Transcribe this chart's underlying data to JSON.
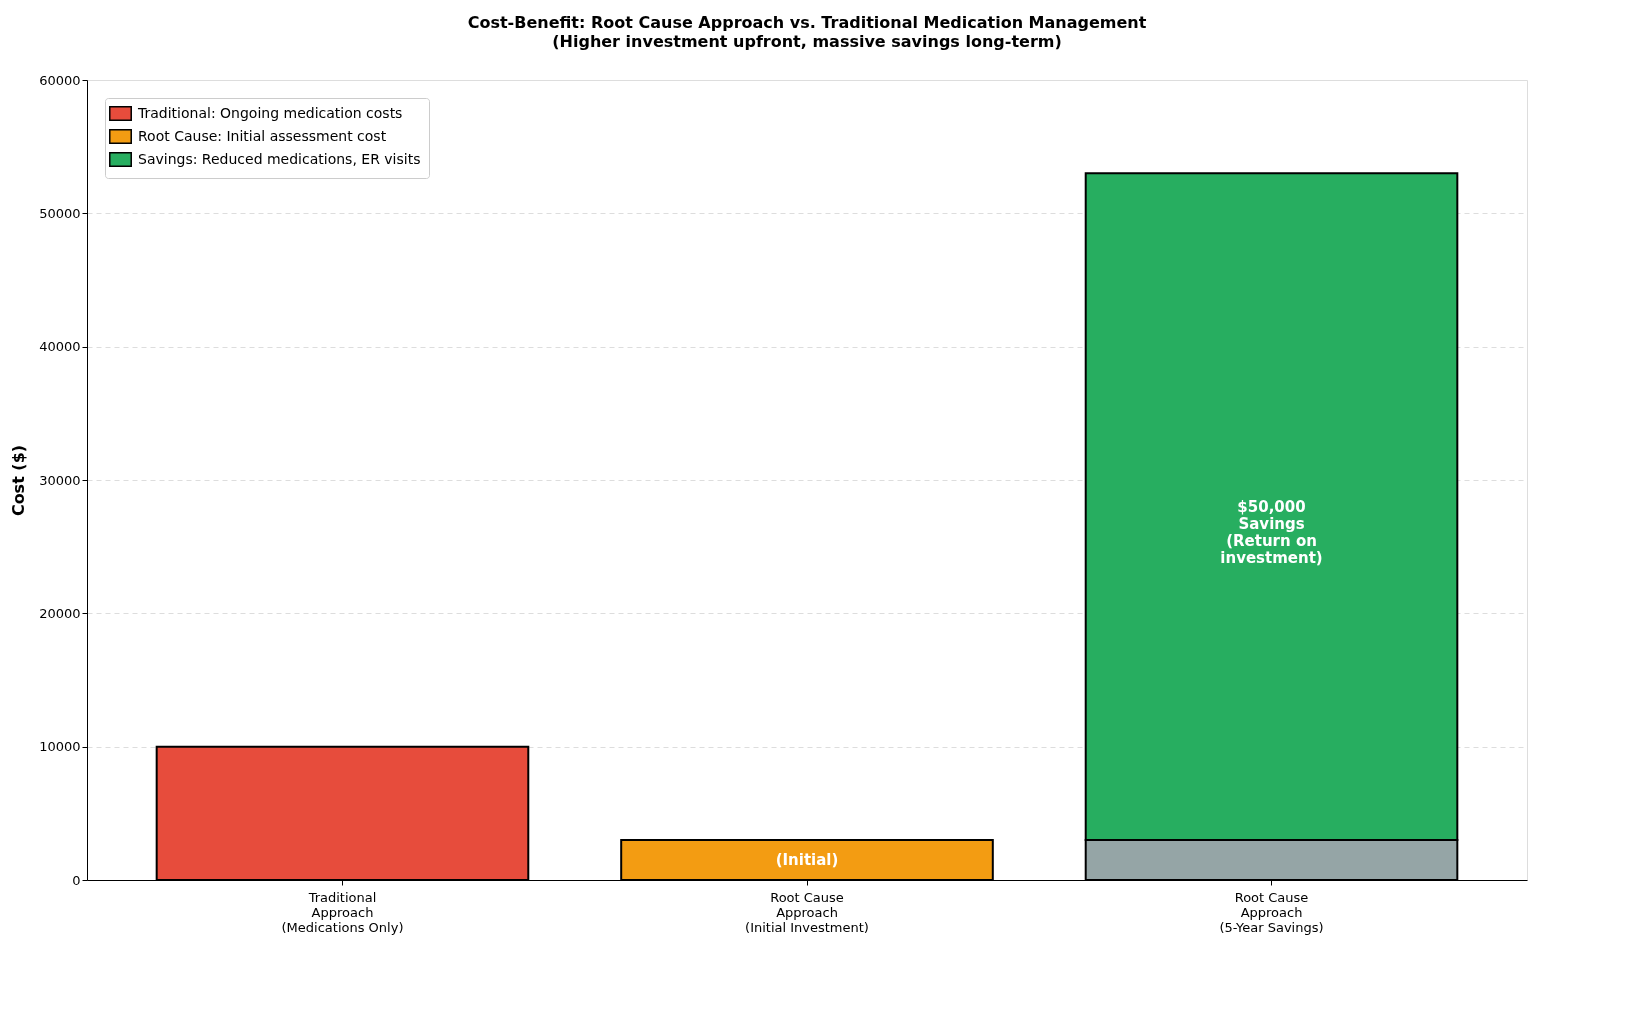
{
  "chart_data": {
    "type": "bar",
    "stacked": true,
    "title": "Cost-Benefit: Root Cause Approach vs. Traditional Medication Management",
    "subtitle": "(Higher investment upfront, massive savings long-term)",
    "ylabel": "Cost ($)",
    "categories": [
      "Traditional\nApproach\n(Medications Only)",
      "Root Cause\nApproach\n(Initial Investment)",
      "Root Cause\nApproach\n(5-Year Savings)"
    ],
    "series": [
      {
        "name": "Traditional: Ongoing medication costs",
        "color": "#e74c3c",
        "values": [
          10000,
          null,
          null
        ]
      },
      {
        "name": "Root Cause: Initial assessment cost",
        "color": "#f39c12",
        "values": [
          null,
          3000,
          null
        ]
      },
      {
        "color": "#95a5a6",
        "values": [
          null,
          null,
          3000
        ]
      },
      {
        "name": "Savings: Reduced medications, ER visits",
        "color": "#27ae60",
        "values": [
          null,
          null,
          50000
        ]
      }
    ],
    "ylim": [
      0,
      60000
    ],
    "yticks": [
      0,
      10000,
      20000,
      30000,
      40000,
      50000,
      60000
    ],
    "grid": "y",
    "legend": "top left",
    "annotations": [
      "(Initial)",
      "$50,000\nSavings\n(Return on\ninvestment)"
    ]
  }
}
